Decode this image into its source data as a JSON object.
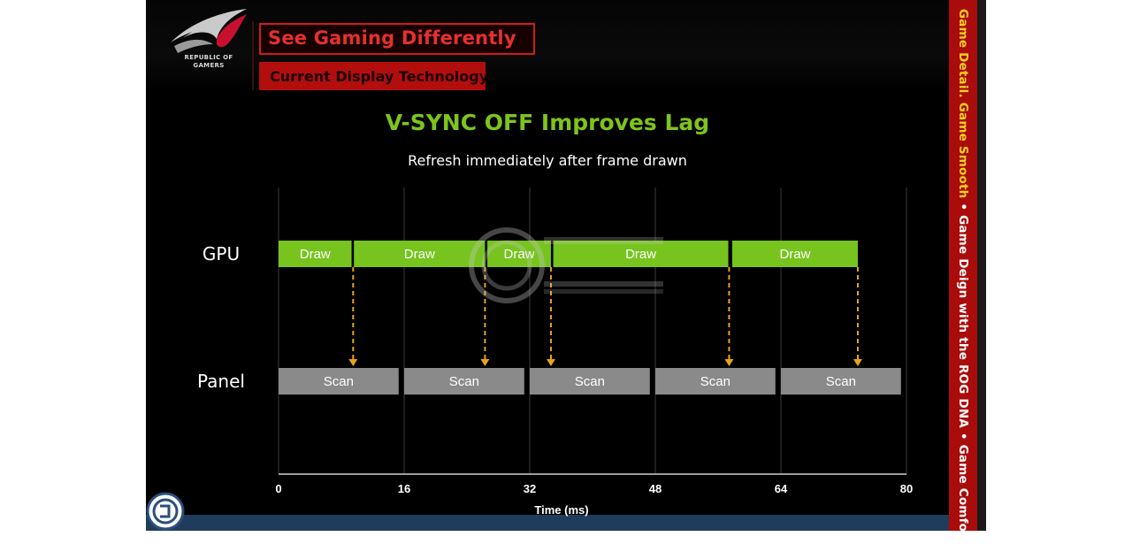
{
  "header": {
    "logo_text": "REPUBLIC OF GAMERS",
    "tagline": "See Gaming Differently",
    "subtagline": "Current Display Technology."
  },
  "side_strip": {
    "part1": "Game Detail. Game Smooth",
    "sep1": " • ",
    "part2": "Game Deign with the ROG DNA",
    "sep2": " • ",
    "part3": "Game Comfort",
    "colors": {
      "highlight": "#ffd21a",
      "text": "#ffffff",
      "background": "#aa0b0b"
    }
  },
  "chart_data": {
    "type": "timing",
    "title": "V-SYNC OFF Improves Lag",
    "subtitle": "Refresh immediately after frame drawn",
    "xlabel": "Time (ms)",
    "xlim": [
      0,
      80
    ],
    "xticks": [
      0,
      16,
      32,
      48,
      64,
      80
    ],
    "grid": true,
    "rows": [
      {
        "name": "GPU",
        "color": "#77c41f",
        "segments": [
          {
            "start": 0,
            "end": 9.3,
            "label": "Draw"
          },
          {
            "start": 9.6,
            "end": 26.3,
            "label": "Draw"
          },
          {
            "start": 26.6,
            "end": 34.7,
            "label": "Draw"
          },
          {
            "start": 35.0,
            "end": 57.3,
            "label": "Draw"
          },
          {
            "start": 57.8,
            "end": 73.8,
            "label": "Draw"
          }
        ]
      },
      {
        "name": "Panel",
        "color": "#8a8a8a",
        "segments": [
          {
            "start": 0,
            "end": 15.3,
            "label": "Scan"
          },
          {
            "start": 16.0,
            "end": 31.3,
            "label": "Scan"
          },
          {
            "start": 32.0,
            "end": 47.3,
            "label": "Scan"
          },
          {
            "start": 48.0,
            "end": 63.3,
            "label": "Scan"
          },
          {
            "start": 64.0,
            "end": 79.3,
            "label": "Scan"
          }
        ]
      }
    ],
    "arrows": [
      9.5,
      26.3,
      34.7,
      57.4,
      73.8
    ],
    "arrow_color": "#e8a317"
  }
}
